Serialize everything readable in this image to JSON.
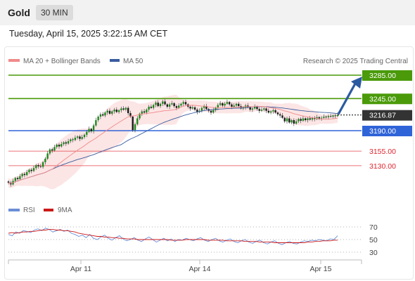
{
  "header": {
    "instrument": "Gold",
    "interval": "30 MIN",
    "datetime": "Tuesday, April 15, 2025 3:22:15 AM CET",
    "credit": "Research © 2025 Trading Central"
  },
  "colors": {
    "green": "#4a9a0a",
    "blue": "#2f63d8",
    "red": "#e0252d",
    "current": "#333333",
    "arrow": "#2c5aa0",
    "ma20": "#f08a8a",
    "ma50": "#3a5c9e",
    "bollinger_fill": "#fbdcdc",
    "rsi": "#6b8ed6",
    "rsi_ma": "#cc1818"
  },
  "chart_data": [
    {
      "type": "candlestick",
      "legend": [
        "MA 20 + Bollinger Bands",
        "MA 50"
      ],
      "x_ticks": [
        "Apr 11",
        "Apr 14",
        "Apr 15"
      ],
      "y_range": [
        3090,
        3300
      ],
      "price_levels": [
        {
          "value": 3285.0,
          "label": "3285.00",
          "kind": "resistance",
          "color": "green"
        },
        {
          "value": 3245.0,
          "label": "3245.00",
          "kind": "resistance",
          "color": "green"
        },
        {
          "value": 3216.87,
          "label": "3216.87",
          "kind": "current",
          "color": "current"
        },
        {
          "value": 3190.0,
          "label": "3190.00",
          "kind": "pivot",
          "color": "blue"
        },
        {
          "value": 3155.0,
          "label": "3155.00",
          "kind": "support",
          "color": "red"
        },
        {
          "value": 3130.0,
          "label": "3130.00",
          "kind": "support",
          "color": "red"
        }
      ],
      "closes": [
        3101,
        3098,
        3104,
        3109,
        3107,
        3112,
        3116,
        3114,
        3119,
        3123,
        3121,
        3126,
        3131,
        3129,
        3128,
        3136,
        3142,
        3151,
        3158,
        3156,
        3162,
        3166,
        3163,
        3167,
        3170,
        3168,
        3172,
        3175,
        3174,
        3178,
        3180,
        3176,
        3179,
        3183,
        3188,
        3193,
        3189,
        3199,
        3208,
        3214,
        3218,
        3216,
        3221,
        3224,
        3219,
        3223,
        3226,
        3222,
        3225,
        3228,
        3226,
        3229,
        3220,
        3214,
        3191,
        3201,
        3211,
        3219,
        3223,
        3221,
        3226,
        3231,
        3229,
        3234,
        3238,
        3232,
        3236,
        3240,
        3235,
        3231,
        3235,
        3237,
        3232,
        3229,
        3233,
        3236,
        3239,
        3235,
        3231,
        3228,
        3230,
        3226,
        3222,
        3224,
        3229,
        3232,
        3227,
        3224,
        3221,
        3225,
        3229,
        3234,
        3237,
        3233,
        3236,
        3239,
        3235,
        3231,
        3233,
        3236,
        3232,
        3228,
        3230,
        3233,
        3230,
        3226,
        3228,
        3231,
        3227,
        3224,
        3226,
        3228,
        3224,
        3221,
        3223,
        3225,
        3221,
        3218,
        3216,
        3212,
        3206,
        3211,
        3204,
        3208,
        3202,
        3206,
        3210,
        3207,
        3211,
        3208,
        3211,
        3209,
        3212,
        3210,
        3213,
        3211,
        3212,
        3214,
        3213,
        3215,
        3214,
        3216,
        3215,
        3217
      ],
      "ma20_end": 3212,
      "ma50_end": 3218,
      "projection": {
        "from": 3216.87,
        "to": 3285.0
      },
      "ranges_note": "Bollinger band upper ~3245 at peak, lower ~3190 near end"
    },
    {
      "type": "line",
      "legend": [
        "RSI",
        "9MA"
      ],
      "y_ticks": [
        70,
        50,
        30
      ],
      "y_range": [
        20,
        80
      ],
      "rsi": [
        58,
        56,
        62,
        60,
        64,
        63,
        61,
        65,
        67,
        64,
        68,
        66,
        62,
        64,
        66,
        63,
        65,
        60,
        58,
        55,
        57,
        53,
        58,
        52,
        50,
        54,
        57,
        52,
        49,
        53,
        56,
        51,
        48,
        50,
        53,
        49,
        47,
        51,
        54,
        50,
        46,
        49,
        52,
        48,
        51,
        47,
        50,
        49,
        52,
        50,
        48,
        51,
        53,
        49,
        47,
        50,
        52,
        48,
        46,
        49,
        51,
        47,
        45,
        48,
        50,
        46,
        44,
        47,
        49,
        45,
        43,
        46,
        48,
        44,
        42,
        45,
        47,
        44,
        43,
        46,
        48,
        47,
        49,
        48,
        50,
        49,
        48,
        51,
        50,
        56
      ],
      "ma9": [
        60,
        61,
        60,
        61,
        62,
        62,
        63,
        63,
        64,
        65,
        65,
        66,
        66,
        65,
        65,
        64,
        64,
        63,
        62,
        60,
        59,
        58,
        57,
        56,
        55,
        55,
        54,
        54,
        53,
        53,
        52,
        52,
        51,
        51,
        51,
        50,
        50,
        50,
        50,
        50,
        50,
        50,
        50,
        50,
        49,
        49,
        49,
        49,
        50,
        50,
        50,
        50,
        50,
        50,
        49,
        49,
        49,
        49,
        49,
        48,
        48,
        48,
        48,
        48,
        47,
        47,
        47,
        47,
        46,
        46,
        46,
        46,
        45,
        45,
        45,
        45,
        45,
        45,
        45,
        45,
        45,
        46,
        46,
        47,
        47,
        48,
        48,
        48,
        49,
        49
      ]
    }
  ]
}
